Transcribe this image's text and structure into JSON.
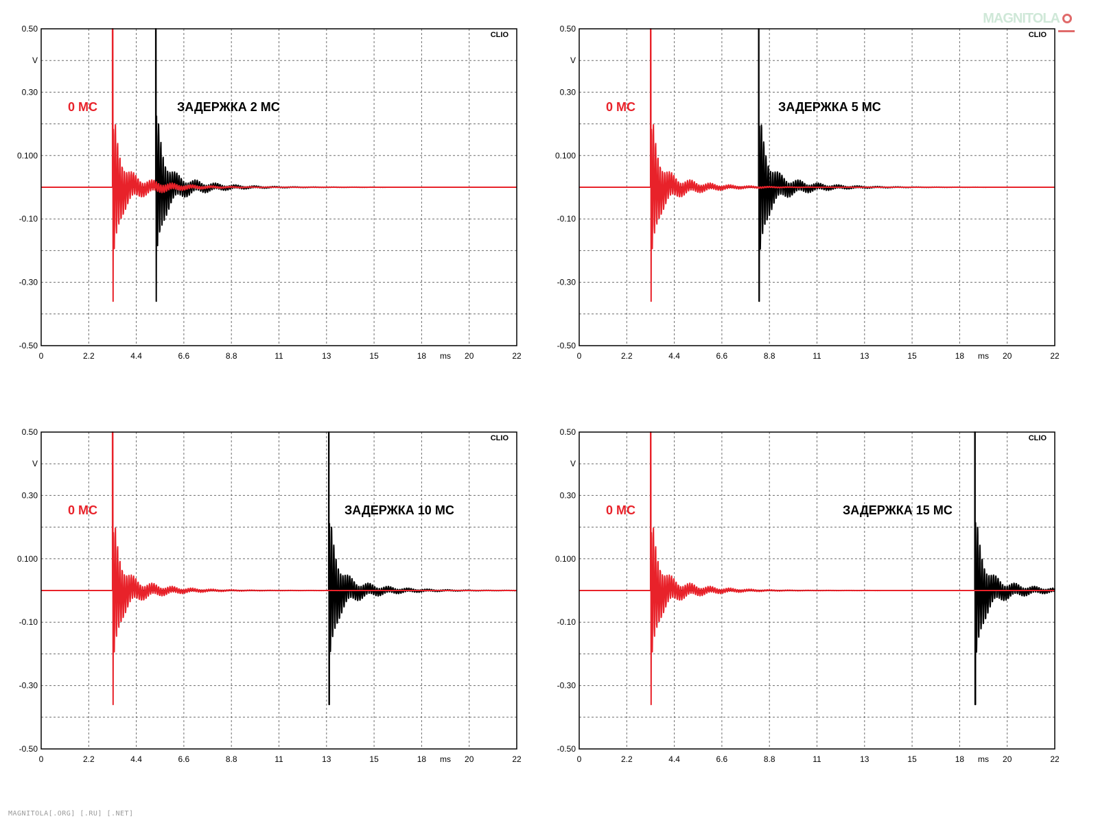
{
  "common": {
    "x_unit": "ms",
    "y_unit": "V",
    "brand": "CLIO",
    "reference_label": "0 МС",
    "x_tick_labels": [
      "0",
      "2.2",
      "4.4",
      "6.6",
      "8.8",
      "11",
      "13",
      "15",
      "18",
      "20",
      "22"
    ],
    "y_tick_labels": [
      "0.50",
      "V",
      "0.30",
      "",
      "0.100",
      "",
      "-0.10",
      "",
      "-0.30",
      "",
      "-0.50"
    ],
    "colors": {
      "reference": "#e8222a",
      "delayed": "#000000",
      "grid": "#6b6b6b",
      "frame": "#000000"
    }
  },
  "watermark": {
    "bottom": "MAGNITOLA[.ORG] [.RU] [.NET]",
    "logo": "MAGNITOLA"
  },
  "chart_data": [
    {
      "type": "line",
      "title": "ЗАДЕРЖКА 2 МС",
      "xlabel": "ms",
      "ylabel": "V",
      "xlim": [
        0,
        22
      ],
      "ylim": [
        -0.5,
        0.5
      ],
      "grid": true,
      "series": [
        {
          "name": "0 МС",
          "color": "#e8222a",
          "onset_ms": 3.3,
          "peak_pos": 0.5,
          "peak_neg": -0.36
        },
        {
          "name": "ЗАДЕРЖКА 2 МС",
          "color": "#000000",
          "onset_ms": 5.3,
          "peak_pos": 0.5,
          "peak_neg": -0.36
        }
      ]
    },
    {
      "type": "line",
      "title": "ЗАДЕРЖКА 5 МС",
      "xlabel": "ms",
      "ylabel": "V",
      "xlim": [
        0,
        22
      ],
      "ylim": [
        -0.5,
        0.5
      ],
      "grid": true,
      "series": [
        {
          "name": "0 МС",
          "color": "#e8222a",
          "onset_ms": 3.3,
          "peak_pos": 0.5,
          "peak_neg": -0.36
        },
        {
          "name": "ЗАДЕРЖКА 5 МС",
          "color": "#000000",
          "onset_ms": 8.3,
          "peak_pos": 0.5,
          "peak_neg": -0.36
        }
      ]
    },
    {
      "type": "line",
      "title": "ЗАДЕРЖКА 10 МС",
      "xlabel": "ms",
      "ylabel": "V",
      "xlim": [
        0,
        22
      ],
      "ylim": [
        -0.5,
        0.5
      ],
      "grid": true,
      "series": [
        {
          "name": "0 МС",
          "color": "#e8222a",
          "onset_ms": 3.3,
          "peak_pos": 0.5,
          "peak_neg": -0.36
        },
        {
          "name": "ЗАДЕРЖКА 10 МС",
          "color": "#000000",
          "onset_ms": 13.3,
          "peak_pos": 0.5,
          "peak_neg": -0.36
        }
      ]
    },
    {
      "type": "line",
      "title": "ЗАДЕРЖКА 15 МС",
      "xlabel": "ms",
      "ylabel": "V",
      "xlim": [
        0,
        22
      ],
      "ylim": [
        -0.5,
        0.5
      ],
      "grid": true,
      "series": [
        {
          "name": "0 МС",
          "color": "#e8222a",
          "onset_ms": 3.3,
          "peak_pos": 0.5,
          "peak_neg": -0.36
        },
        {
          "name": "ЗАДЕРЖКА 15 МС",
          "color": "#000000",
          "onset_ms": 18.3,
          "peak_pos": 0.5,
          "peak_neg": -0.36
        }
      ]
    }
  ]
}
